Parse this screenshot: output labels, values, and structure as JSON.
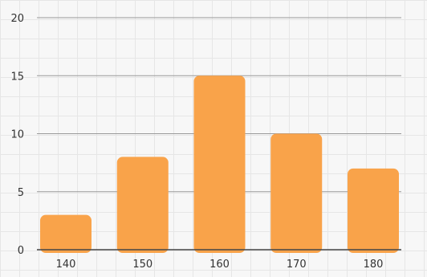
{
  "chart_data": {
    "type": "bar",
    "categories": [
      "140",
      "150",
      "160",
      "170",
      "180"
    ],
    "values": [
      3,
      8,
      15,
      10,
      7
    ],
    "ylim": [
      0,
      20
    ],
    "yticks": [
      "0",
      "5",
      "10",
      "15",
      "20"
    ],
    "title": "",
    "xlabel": "",
    "ylabel": "",
    "grid": true,
    "bar_color": "#f9a34a"
  }
}
